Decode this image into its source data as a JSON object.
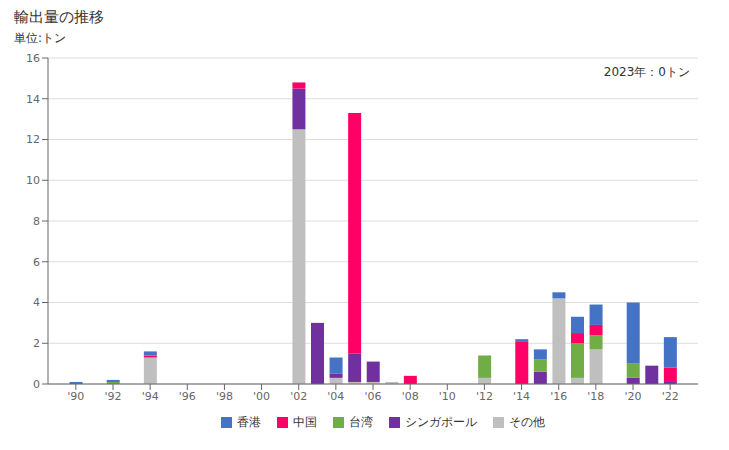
{
  "chart_data": {
    "type": "bar",
    "stacked": true,
    "title": "輸出量の推移",
    "ylabel": "単位:トン",
    "annotations": [
      "2023年：0トン"
    ],
    "x": [
      1990,
      1991,
      1992,
      1993,
      1994,
      1995,
      1996,
      1997,
      1998,
      1999,
      2000,
      2001,
      2002,
      2003,
      2004,
      2005,
      2006,
      2007,
      2008,
      2009,
      2010,
      2011,
      2012,
      2013,
      2014,
      2015,
      2016,
      2017,
      2018,
      2019,
      2020,
      2021,
      2022
    ],
    "xlim": [
      1988.5,
      2023.5
    ],
    "xticks": [
      {
        "value": 1990,
        "label": "'90"
      },
      {
        "value": 1992,
        "label": "'92"
      },
      {
        "value": 1994,
        "label": "'94"
      },
      {
        "value": 1996,
        "label": "'96"
      },
      {
        "value": 1998,
        "label": "'98"
      },
      {
        "value": 2000,
        "label": "'00"
      },
      {
        "value": 2002,
        "label": "'02"
      },
      {
        "value": 2004,
        "label": "'04"
      },
      {
        "value": 2006,
        "label": "'06"
      },
      {
        "value": 2008,
        "label": "'08"
      },
      {
        "value": 2010,
        "label": "'10"
      },
      {
        "value": 2012,
        "label": "'12"
      },
      {
        "value": 2014,
        "label": "'14"
      },
      {
        "value": 2016,
        "label": "'16"
      },
      {
        "value": 2018,
        "label": "'18"
      },
      {
        "value": 2020,
        "label": "'20"
      },
      {
        "value": 2022,
        "label": "'22"
      }
    ],
    "ylim": [
      0,
      16
    ],
    "yticks": [
      0,
      2,
      4,
      6,
      8,
      10,
      12,
      14,
      16
    ],
    "grid": true,
    "legend": "bottom",
    "series": [
      {
        "name": "その他",
        "color": "#BFBFBF",
        "values": [
          0,
          0,
          0,
          0,
          1.3,
          0,
          0,
          0,
          0,
          0,
          0,
          0,
          12.5,
          0,
          0.3,
          0.1,
          0.1,
          0.1,
          0,
          0,
          0,
          0,
          0.3,
          0,
          0,
          0,
          4.2,
          0.3,
          1.7,
          0,
          0,
          0,
          0
        ]
      },
      {
        "name": "シンガポール",
        "color": "#7030A0",
        "values": [
          0,
          0,
          0,
          0,
          0,
          0,
          0,
          0,
          0,
          0,
          0,
          0,
          2.0,
          3.0,
          0.2,
          1.4,
          1.0,
          0,
          0,
          0,
          0,
          0,
          0,
          0,
          0,
          0.6,
          0,
          0,
          0,
          0,
          0.3,
          0.9,
          0.1
        ]
      },
      {
        "name": "台湾",
        "color": "#70AD47",
        "values": [
          0,
          0,
          0.1,
          0,
          0,
          0,
          0,
          0,
          0,
          0,
          0,
          0,
          0,
          0,
          0,
          0,
          0,
          0,
          0,
          0,
          0,
          0,
          1.1,
          0,
          0,
          0.6,
          0,
          1.7,
          0.7,
          0,
          0.7,
          0,
          0
        ]
      },
      {
        "name": "中国",
        "color": "#FF0066",
        "values": [
          0,
          0,
          0,
          0,
          0.1,
          0,
          0,
          0,
          0,
          0,
          0,
          0,
          0.3,
          0,
          0,
          11.8,
          0,
          0,
          0.4,
          0,
          0,
          0,
          0,
          0,
          2.1,
          0,
          0,
          0.5,
          0.5,
          0,
          0,
          0,
          0.7
        ]
      },
      {
        "name": "香港",
        "color": "#4472C4",
        "values": [
          0.1,
          0,
          0.1,
          0,
          0.2,
          0,
          0,
          0,
          0,
          0,
          0,
          0,
          0,
          0,
          0.8,
          0,
          0,
          0,
          0,
          0,
          0,
          0,
          0,
          0,
          0.1,
          0.5,
          0.3,
          0.8,
          1.0,
          0,
          3.0,
          0,
          1.5
        ]
      }
    ]
  }
}
